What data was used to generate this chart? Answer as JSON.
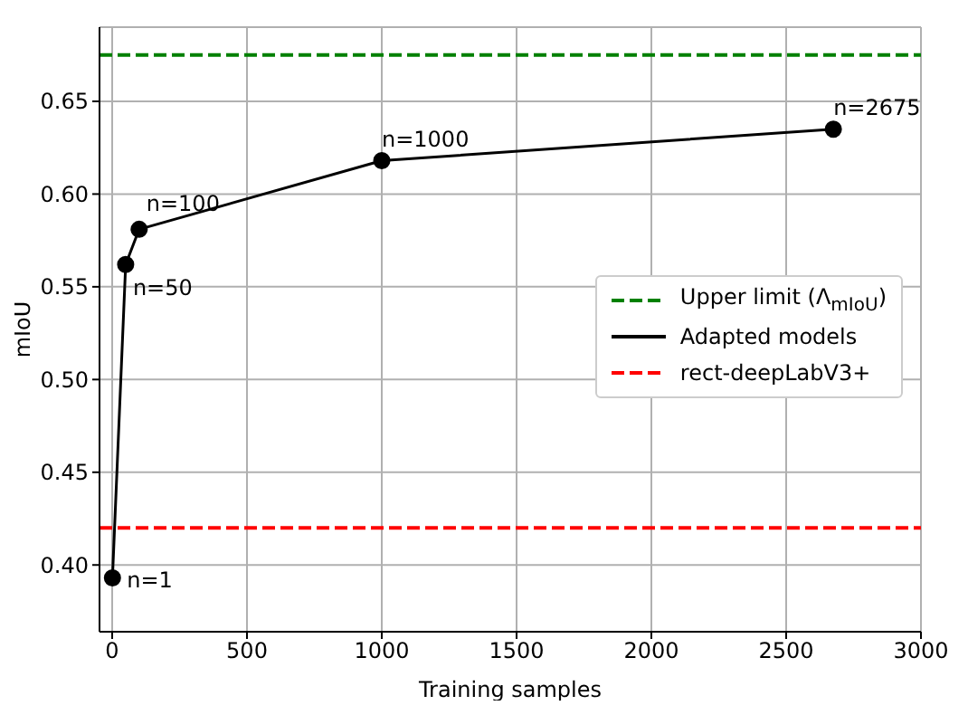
{
  "chart_data": {
    "type": "line",
    "xlabel": "Training samples",
    "ylabel": "mIoU",
    "x": [
      1,
      50,
      100,
      1000,
      2675
    ],
    "series": [
      {
        "name": "Adapted models",
        "color": "#000000",
        "values": [
          0.393,
          0.562,
          0.581,
          0.618,
          0.635
        ]
      }
    ],
    "ref_lines": [
      {
        "axis": "y",
        "value": 0.675,
        "label": "Upper limit (Λ$_{mIoU}$)",
        "color": "#008000",
        "line_style": "dashed"
      },
      {
        "axis": "y",
        "value": 0.42,
        "label": "rect-deepLabV3+",
        "color": "#ff0000",
        "line_style": "dashed"
      }
    ],
    "annotations": [
      {
        "text": "n=1",
        "x": 1,
        "y": 0.393
      },
      {
        "text": "n=50",
        "x": 50,
        "y": 0.562
      },
      {
        "text": "n=100",
        "x": 100,
        "y": 0.581
      },
      {
        "text": "n=1000",
        "x": 1000,
        "y": 0.618
      },
      {
        "text": "n=2675",
        "x": 2675,
        "y": 0.635
      }
    ],
    "xlim": [
      -47,
      3000
    ],
    "xticks": [
      0,
      500,
      1000,
      1500,
      2000,
      2500,
      3000
    ],
    "ylim": [
      0.364,
      0.69
    ],
    "yticks": [
      {
        "value": 0.4,
        "label": "0.40"
      },
      0.45,
      {
        "value": 0.5,
        "label": "0.50"
      },
      0.55,
      {
        "value": 0.6,
        "label": "0.60"
      },
      0.65
    ],
    "grid": true,
    "legend": "center right",
    "marker": "circle",
    "line_style": "solid"
  }
}
